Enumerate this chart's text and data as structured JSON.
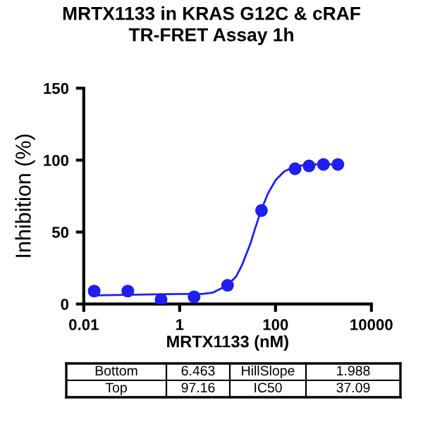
{
  "chart_data": {
    "type": "scatter",
    "title": "MRTX1133 in KRAS G12C & cRAF\nTR-FRET Assay 1h",
    "xlabel": "MRTX1133 (nM)",
    "ylabel": "Inhibition (%)",
    "log": "x",
    "xlim": [
      0.01,
      10000
    ],
    "xticks": [
      0.01,
      1,
      100,
      10000
    ],
    "ylim": [
      0,
      150
    ],
    "yticks": [
      0,
      50,
      100,
      150
    ],
    "grid": false,
    "marker": "circle",
    "series": [
      {
        "color": "#1f1ff0",
        "x": [
          0.0165,
          0.083,
          0.41,
          2.0,
          10,
          51,
          256,
          500,
          1000,
          2000
        ],
        "values": [
          9,
          9,
          3,
          5,
          13,
          65,
          94,
          96,
          97,
          97
        ],
        "errors": [
          null,
          null,
          null,
          3,
          null,
          3,
          null,
          null,
          null,
          null
        ]
      },
      {
        "type": "line",
        "color": "#1f1ff0",
        "marker": "none",
        "x": [
          0.0165,
          1,
          3,
          5,
          10,
          15,
          20,
          30,
          37.09,
          50,
          70,
          100,
          150,
          200,
          300,
          500,
          1000,
          2000
        ],
        "values": [
          6,
          7,
          7,
          8,
          13,
          19,
          27,
          42,
          52,
          65,
          77,
          86,
          92,
          94,
          96,
          97,
          97,
          97
        ]
      }
    ],
    "annotations": [
      "Bottom",
      "6.463",
      "HillSlope",
      "1.988",
      "Top",
      "97.16",
      "IC50",
      "37.09"
    ]
  }
}
